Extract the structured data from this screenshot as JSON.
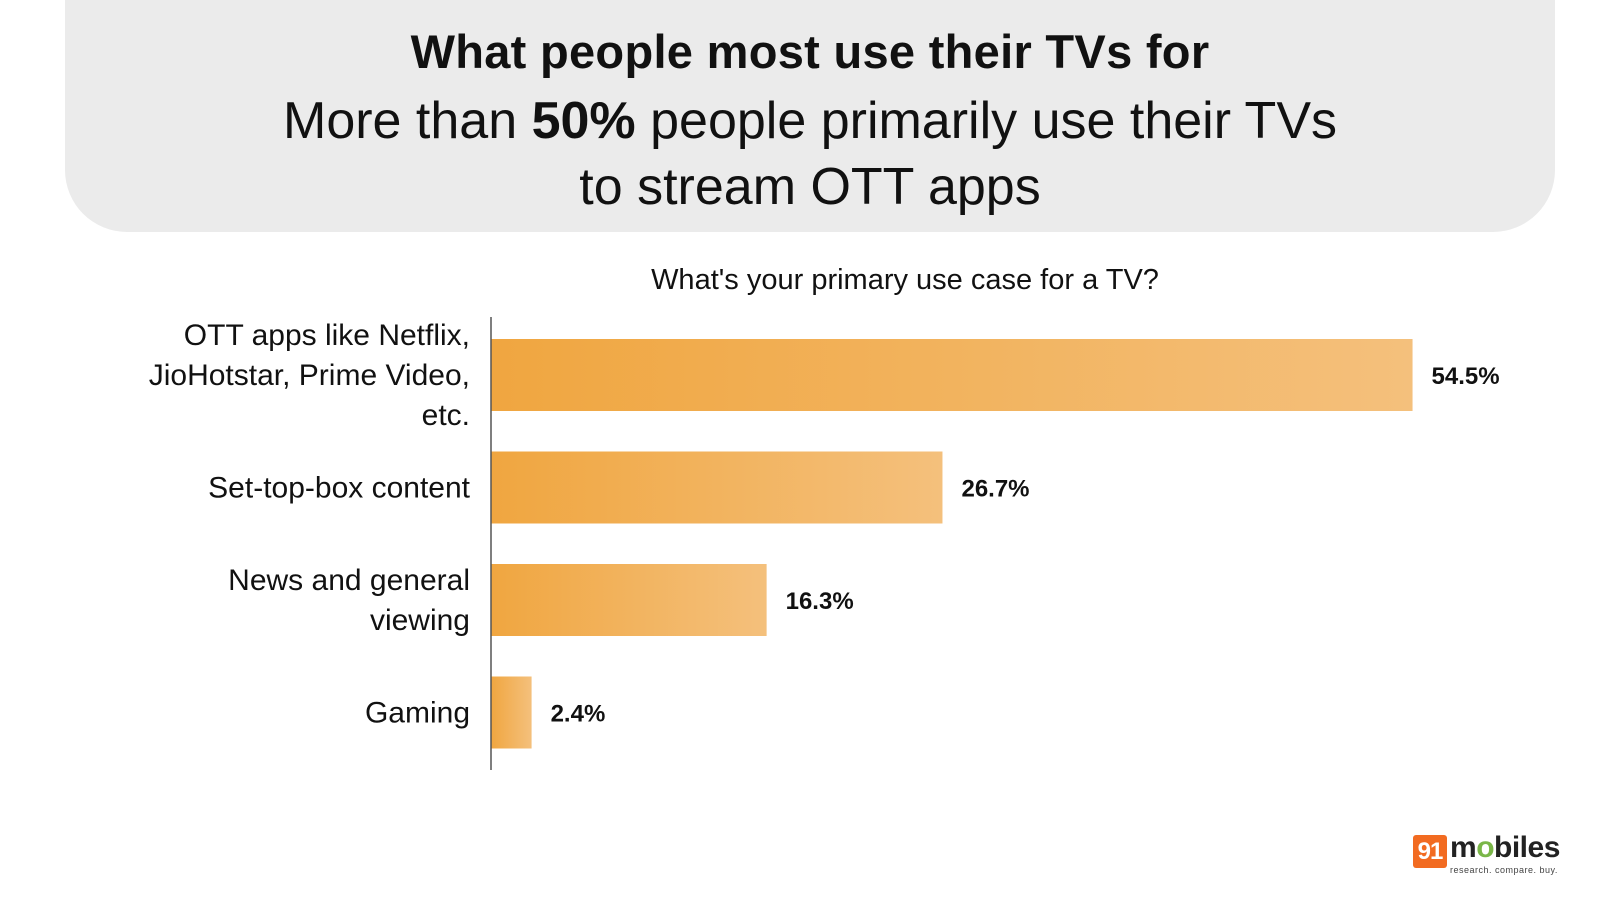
{
  "header": {
    "title": "What people most use their TVs for",
    "subtitle_part1": "More than ",
    "subtitle_bold": "50%",
    "subtitle_part2": " people primarily use their TVs",
    "subtitle_line2": "to stream OTT apps"
  },
  "chart_data": {
    "type": "bar",
    "orientation": "horizontal",
    "title": "What's your primary use case for a TV?",
    "categories": [
      [
        "OTT apps like Netflix,",
        "JioHotstar, Prime Video,",
        "etc."
      ],
      [
        "Set-top-box content"
      ],
      [
        "News and general",
        "viewing"
      ],
      [
        "Gaming"
      ]
    ],
    "values": [
      54.5,
      26.7,
      16.3,
      2.4
    ],
    "value_labels": [
      "54.5%",
      "26.7%",
      "16.3%",
      "2.4%"
    ],
    "unit": "%",
    "xlim": [
      0,
      55
    ],
    "grid": false,
    "bar_gradient": [
      "#f0a640",
      "#f4c07c"
    ],
    "axis_color": "#555555"
  },
  "logo": {
    "badge": "91",
    "word_part1": "m",
    "word_dot": "o",
    "word_part2": "biles",
    "tagline": "research. compare. buy.",
    "brand_color": "#f26b21",
    "dot_color": "#7ab648"
  }
}
